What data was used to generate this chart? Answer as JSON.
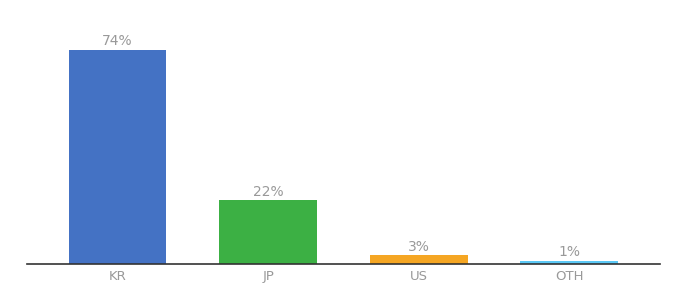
{
  "categories": [
    "KR",
    "JP",
    "US",
    "OTH"
  ],
  "values": [
    74,
    22,
    3,
    1
  ],
  "bar_colors": [
    "#4472c4",
    "#3cb044",
    "#f5a623",
    "#5bc8f5"
  ],
  "labels": [
    "74%",
    "22%",
    "3%",
    "1%"
  ],
  "ylim": [
    0,
    84
  ],
  "background_color": "#ffffff",
  "label_fontsize": 10,
  "tick_fontsize": 9.5,
  "bar_width": 0.65,
  "label_color": "#999999",
  "tick_color": "#999999",
  "spine_color": "#333333"
}
